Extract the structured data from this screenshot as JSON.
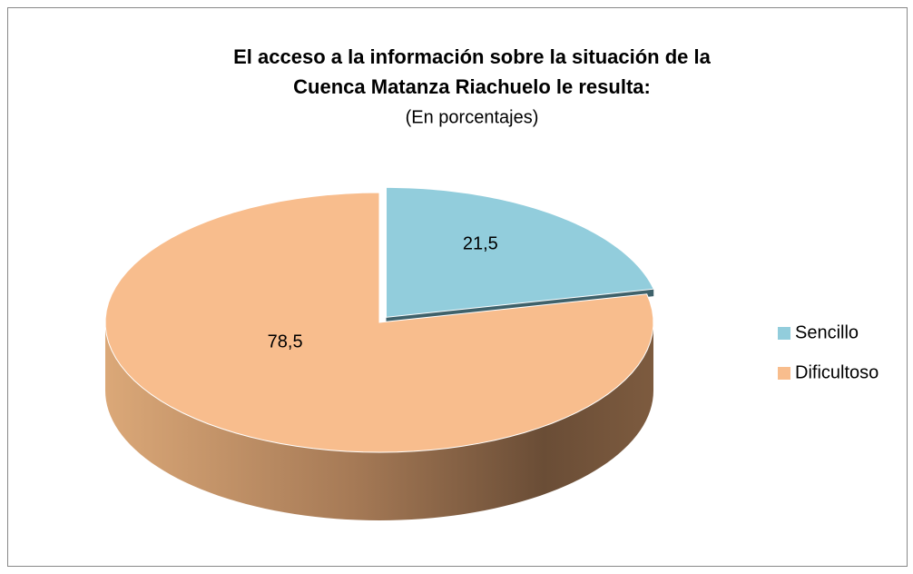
{
  "chart_data": {
    "type": "pie",
    "title": [
      "El acceso a la información sobre la situación de la",
      "Cuenca Matanza Riachuelo le resulta:"
    ],
    "subtitle": "(En porcentajes)",
    "categories": [
      "Sencillo",
      "Dificultoso"
    ],
    "values": [
      21.5,
      78.5
    ],
    "value_labels": [
      "21,5",
      "78,5"
    ],
    "colors": [
      "#92cddc",
      "#f8bd8d"
    ],
    "legend": "right"
  }
}
